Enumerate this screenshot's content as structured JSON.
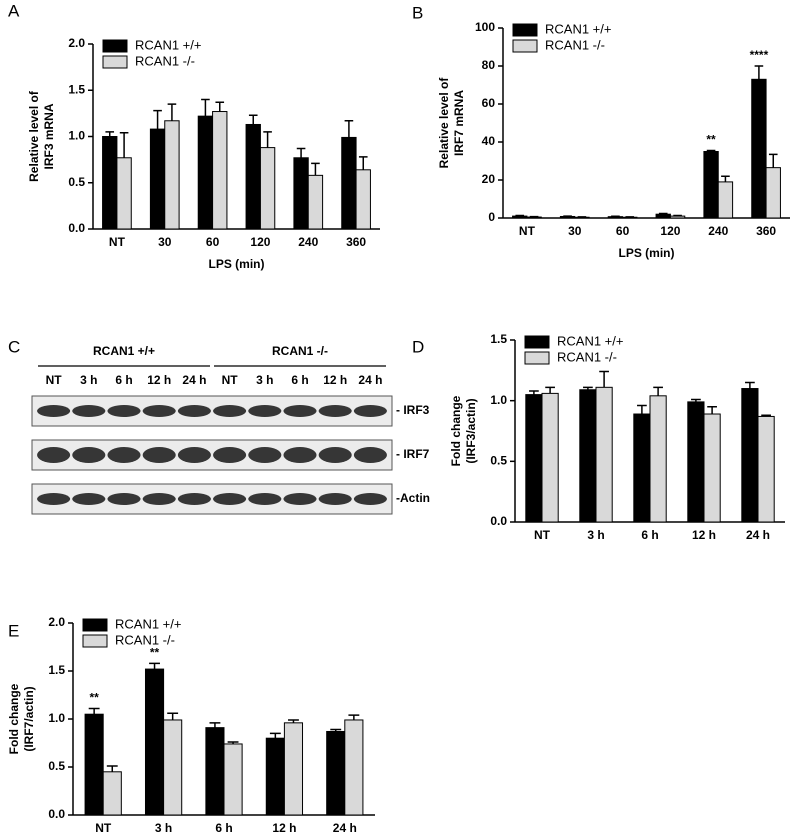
{
  "chart_data": [
    {
      "panel": "A",
      "type": "bar",
      "categories": [
        "NT",
        "30",
        "60",
        "120",
        "240",
        "360"
      ],
      "xlabel": "LPS (min)",
      "ylabel": [
        "Relative level of",
        "IRF3 mRNA"
      ],
      "ylim": [
        0,
        2
      ],
      "yticks": [
        {
          "value": 0,
          "label": "0.0"
        },
        0.5,
        {
          "value": 1,
          "label": "1.0"
        },
        1.5,
        {
          "value": 2,
          "label": "2.0"
        }
      ],
      "legend": "upper left",
      "series": [
        {
          "name": "RCAN1 +/+",
          "color": "#000000",
          "values": [
            1.0,
            1.08,
            1.22,
            1.13,
            0.77,
            0.99
          ],
          "errors": [
            0.05,
            0.2,
            0.18,
            0.1,
            0.1,
            0.18
          ]
        },
        {
          "name": "RCAN1 -/-",
          "color": "#d9d9d9",
          "values": [
            0.77,
            1.17,
            1.27,
            0.88,
            0.58,
            0.64
          ],
          "errors": [
            0.27,
            0.18,
            0.1,
            0.17,
            0.13,
            0.14
          ]
        }
      ]
    },
    {
      "panel": "B",
      "type": "bar",
      "categories": [
        "NT",
        "30",
        "60",
        "120",
        "240",
        "360"
      ],
      "xlabel": "LPS (min)",
      "ylabel": [
        "Relative level of",
        "IRF7 mRNA"
      ],
      "ylim": [
        0,
        100
      ],
      "yticks": [
        0,
        20,
        40,
        60,
        80,
        100
      ],
      "legend": "upper left",
      "series": [
        {
          "name": "RCAN1 +/+",
          "color": "#000000",
          "values": [
            1,
            0.8,
            0.7,
            2,
            35,
            73
          ],
          "errors": [
            0.3,
            0.2,
            0.2,
            0.4,
            0.5,
            7
          ]
        },
        {
          "name": "RCAN1 -/-",
          "color": "#d9d9d9",
          "values": [
            0.5,
            0.4,
            0.4,
            1,
            19,
            26.5
          ],
          "errors": [
            0.2,
            0.2,
            0.2,
            0.3,
            3,
            7
          ]
        }
      ],
      "annotations": [
        {
          "text": "**",
          "category": "240"
        },
        {
          "text": "****",
          "category": "360"
        }
      ]
    },
    {
      "panel": "D",
      "type": "bar",
      "categories": [
        "NT",
        "3 h",
        "6 h",
        "12 h",
        "24 h"
      ],
      "ylabel": [
        "Fold change",
        "(IRF3/actin)"
      ],
      "ylim": [
        0,
        1.5
      ],
      "yticks": [
        {
          "value": 0,
          "label": "0.0"
        },
        0.5,
        {
          "value": 1,
          "label": "1.0"
        },
        1.5
      ],
      "legend": "upper left",
      "series": [
        {
          "name": "RCAN1 +/+",
          "color": "#000000",
          "values": [
            1.05,
            1.09,
            0.89,
            0.99,
            1.1
          ],
          "errors": [
            0.03,
            0.02,
            0.07,
            0.02,
            0.05
          ]
        },
        {
          "name": "RCAN1 -/-",
          "color": "#d9d9d9",
          "values": [
            1.06,
            1.11,
            1.04,
            0.89,
            0.87
          ],
          "errors": [
            0.05,
            0.13,
            0.07,
            0.06,
            0.01
          ]
        }
      ]
    },
    {
      "panel": "E",
      "type": "bar",
      "categories": [
        "NT",
        "3 h",
        "6 h",
        "12 h",
        "24 h"
      ],
      "ylabel": [
        "Fold change",
        "(IRF7/actin)"
      ],
      "ylim": [
        0,
        2
      ],
      "yticks": [
        {
          "value": 0,
          "label": "0.0"
        },
        0.5,
        {
          "value": 1,
          "label": "1.0"
        },
        1.5,
        {
          "value": 2,
          "label": "2.0"
        }
      ],
      "legend": "upper left",
      "series": [
        {
          "name": "RCAN1 +/+",
          "color": "#000000",
          "values": [
            1.05,
            1.52,
            0.91,
            0.8,
            0.87
          ],
          "errors": [
            0.06,
            0.06,
            0.05,
            0.05,
            0.02
          ]
        },
        {
          "name": "RCAN1 -/-",
          "color": "#d9d9d9",
          "values": [
            0.45,
            0.99,
            0.74,
            0.96,
            0.99
          ],
          "errors": [
            0.06,
            0.07,
            0.02,
            0.03,
            0.05
          ]
        }
      ],
      "annotations": [
        {
          "text": "**",
          "category": "NT"
        },
        {
          "text": "**",
          "category": "3 h"
        }
      ]
    }
  ],
  "blot": {
    "panel": "C",
    "groups": [
      "RCAN1 +/+",
      "RCAN1 -/-"
    ],
    "lanes": [
      "NT",
      "3 h",
      "6 h",
      "12 h",
      "24 h",
      "NT",
      "3 h",
      "6 h",
      "12 h",
      "24 h"
    ],
    "rows": [
      "- IRF3",
      "- IRF7",
      "-Actin"
    ]
  }
}
